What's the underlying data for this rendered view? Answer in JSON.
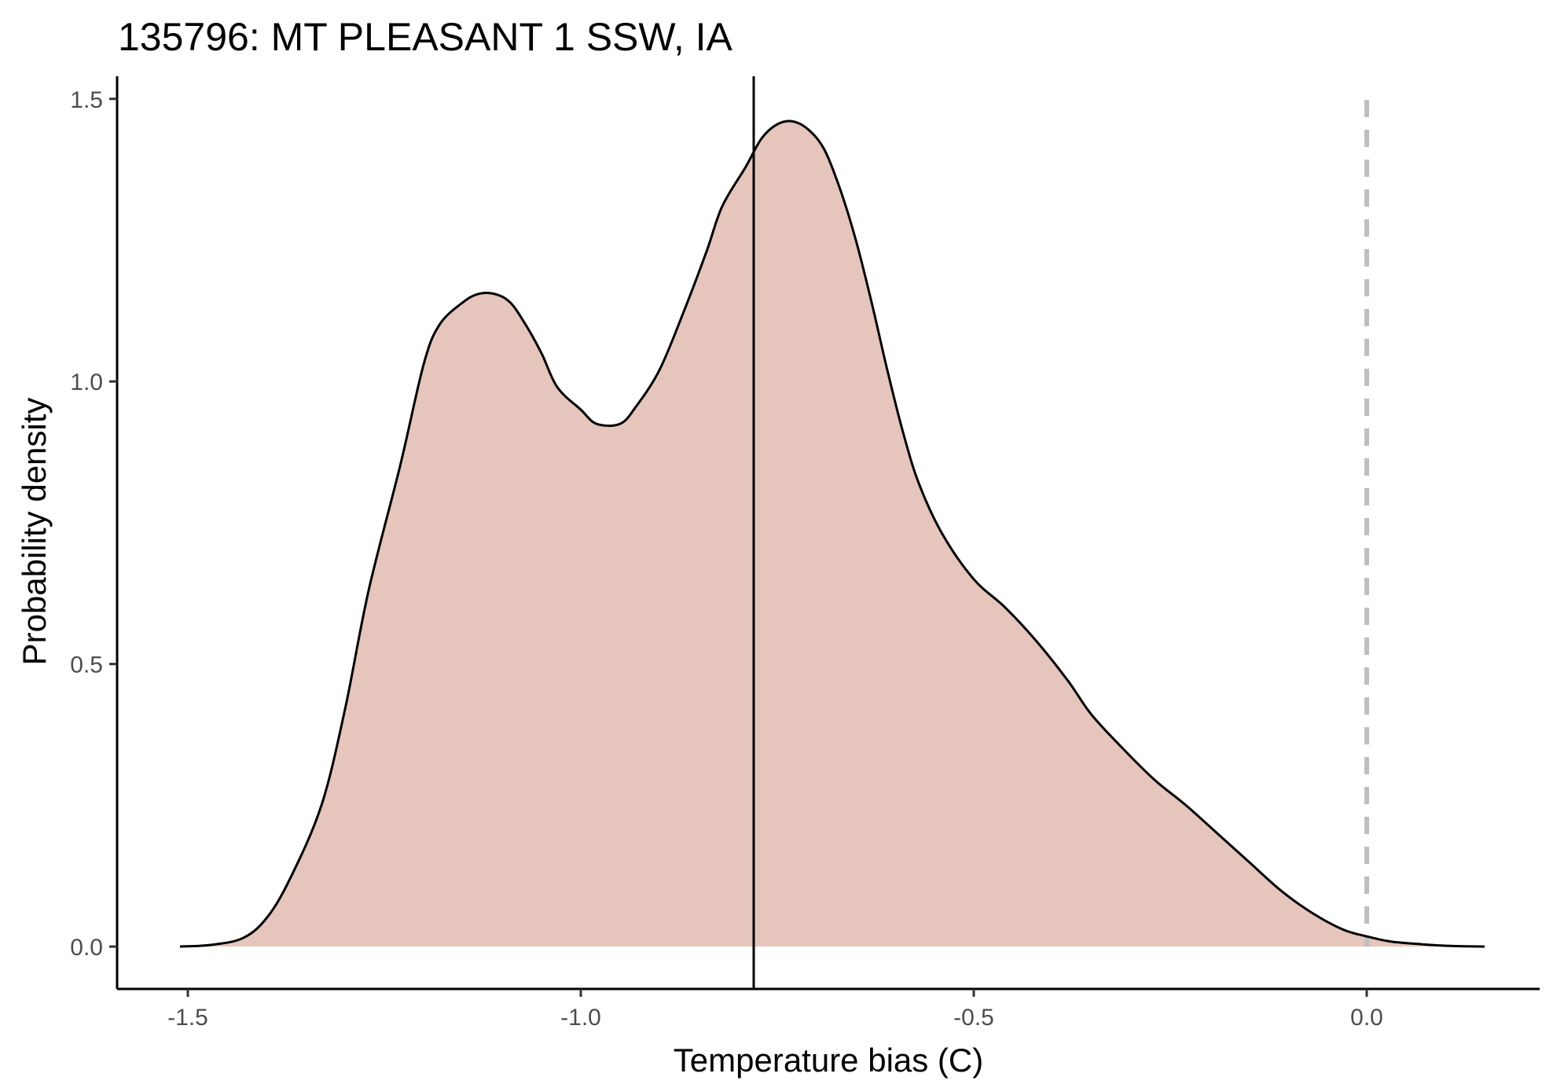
{
  "chart_data": {
    "type": "area",
    "title": "135796: MT PLEASANT 1 SSW, IA",
    "xlabel": "Temperature bias (C)",
    "ylabel": "Probability density",
    "xlim": [
      -1.59,
      0.22
    ],
    "ylim": [
      -0.075,
      1.54
    ],
    "x_ticks": [
      -1.5,
      -1.0,
      -0.5,
      0.0
    ],
    "x_tick_labels": [
      "-1.5",
      "-1.0",
      "-0.5",
      "0.0"
    ],
    "y_ticks": [
      0.0,
      0.5,
      1.0,
      1.5
    ],
    "y_tick_labels": [
      "0.0",
      "0.5",
      "1.0",
      "1.5"
    ],
    "grid": false,
    "legend": "none",
    "fill_color": "#e5c5bc",
    "line_color": "#000000",
    "reference_line_color": "#bebebe",
    "series": [
      {
        "x": [
          -1.51,
          -1.47,
          -1.43,
          -1.4,
          -1.37,
          -1.33,
          -1.3,
          -1.27,
          -1.23,
          -1.2,
          -1.18,
          -1.15,
          -1.13,
          -1.11,
          -1.09,
          -1.07,
          -1.05,
          -1.03,
          -1.0,
          -0.98,
          -0.95,
          -0.93,
          -0.9,
          -0.87,
          -0.84,
          -0.82,
          -0.79,
          -0.77,
          -0.75,
          -0.73,
          -0.71,
          -0.69,
          -0.67,
          -0.65,
          -0.63,
          -0.61,
          -0.59,
          -0.57,
          -0.54,
          -0.5,
          -0.46,
          -0.42,
          -0.38,
          -0.35,
          -0.31,
          -0.27,
          -0.23,
          -0.19,
          -0.15,
          -0.11,
          -0.07,
          -0.03,
          0.0,
          0.03,
          0.07,
          0.11,
          0.15
        ],
        "y": [
          0.0,
          0.003,
          0.015,
          0.05,
          0.12,
          0.25,
          0.42,
          0.63,
          0.85,
          1.03,
          1.1,
          1.14,
          1.155,
          1.155,
          1.14,
          1.1,
          1.05,
          0.99,
          0.95,
          0.925,
          0.925,
          0.955,
          1.02,
          1.12,
          1.23,
          1.31,
          1.38,
          1.43,
          1.455,
          1.46,
          1.445,
          1.41,
          1.34,
          1.25,
          1.14,
          1.02,
          0.91,
          0.82,
          0.73,
          0.65,
          0.6,
          0.54,
          0.47,
          0.41,
          0.35,
          0.295,
          0.25,
          0.2,
          0.15,
          0.1,
          0.06,
          0.03,
          0.018,
          0.009,
          0.004,
          0.001,
          0.0
        ]
      }
    ],
    "reference_lines": [
      {
        "x": -0.78,
        "style": "solid",
        "color": "#000000"
      },
      {
        "x": 0.0,
        "style": "dashed",
        "color": "#bebebe"
      }
    ]
  }
}
